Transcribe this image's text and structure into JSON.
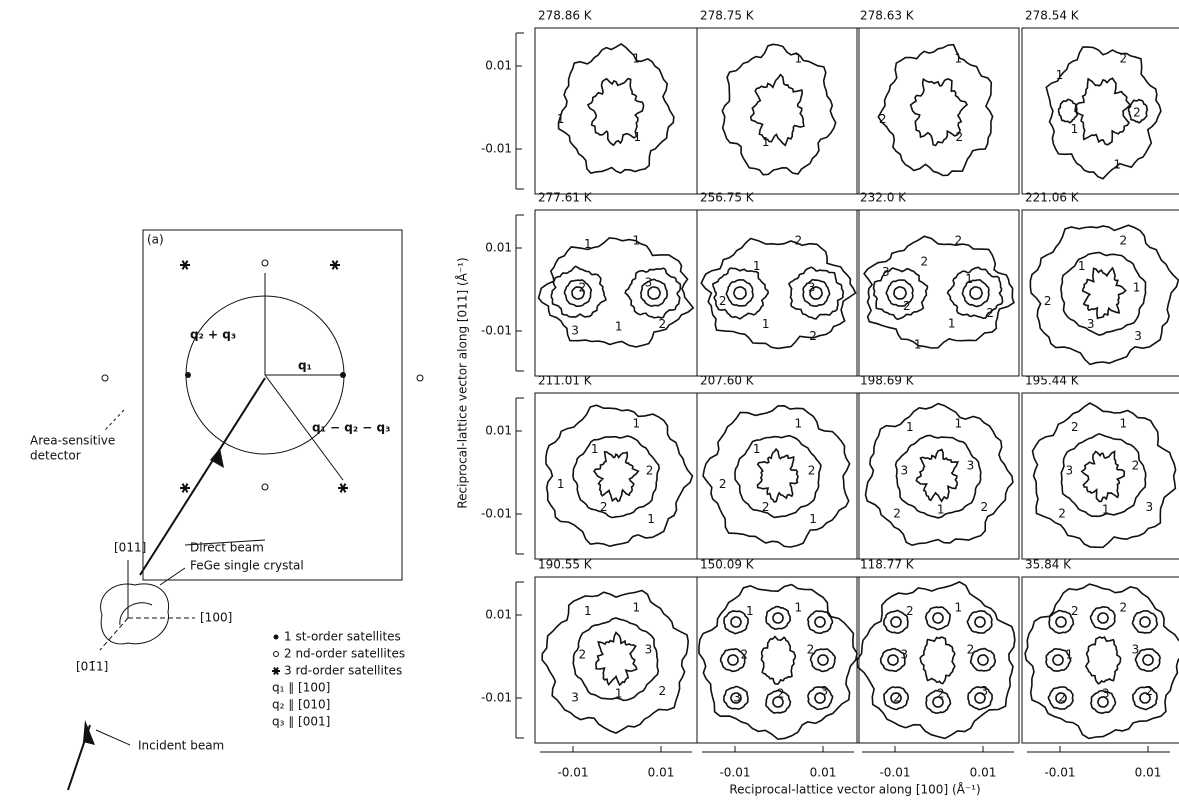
{
  "diagram": {
    "label": "(a)",
    "q23": "q₂ + q₃",
    "q1": "q₁",
    "q123": "q₁ − q₂ − q₃",
    "detector": [
      "Area-sensitive",
      "detector"
    ],
    "direct_beam": "Direct beam",
    "crystal": "FeGe single crystal",
    "incident_beam": "Incident beam",
    "axis_up": "[011]",
    "axis_right": "[100]",
    "axis_down": "[01̄1]"
  },
  "legend": [
    "1 st-order satellites",
    "2 nd-order satellites",
    "3 rd-order satellites",
    "q₁ ∥ [100]",
    "q₂ ∥ [010]",
    "q₃ ∥ [001]"
  ],
  "panels": [
    {
      "temperature": "278.86 K",
      "contour_labels": [
        "1",
        "1",
        "1"
      ]
    },
    {
      "temperature": "278.75 K",
      "contour_labels": [
        "1",
        "1"
      ]
    },
    {
      "temperature": "278.63 K",
      "contour_labels": [
        "1",
        "2",
        "2"
      ]
    },
    {
      "temperature": "278.54 K",
      "contour_labels": [
        "2",
        "2",
        "1",
        "1",
        "1"
      ]
    },
    {
      "temperature": "277.61 K",
      "contour_labels": [
        "1",
        "3",
        "2",
        "1",
        "3",
        "2",
        "1"
      ]
    },
    {
      "temperature": "256.75 K",
      "contour_labels": [
        "2",
        "3",
        "2",
        "1",
        "2",
        "1"
      ]
    },
    {
      "temperature": "232.0  K",
      "contour_labels": [
        "2",
        "1",
        "2",
        "1",
        "1",
        "2",
        "3",
        "2"
      ]
    },
    {
      "temperature": "221.06 K",
      "contour_labels": [
        "2",
        "1",
        "3",
        "3",
        "2",
        "1"
      ]
    },
    {
      "temperature": "211.01 K",
      "contour_labels": [
        "1",
        "2",
        "1",
        "2",
        "1",
        "1"
      ]
    },
    {
      "temperature": "207.60 K",
      "contour_labels": [
        "1",
        "2",
        "1",
        "2",
        "2",
        "1"
      ]
    },
    {
      "temperature": "198.69 K",
      "contour_labels": [
        "1",
        "3",
        "2",
        "1",
        "2",
        "3",
        "1"
      ]
    },
    {
      "temperature": "195.44 K",
      "contour_labels": [
        "1",
        "2",
        "3",
        "1",
        "2",
        "3",
        "2"
      ]
    },
    {
      "temperature": "190.55 K",
      "contour_labels": [
        "1",
        "3",
        "2",
        "1",
        "3",
        "2",
        "1"
      ]
    },
    {
      "temperature": "150.09 K",
      "contour_labels": [
        "1",
        "2",
        "3",
        "2",
        "3",
        "2",
        "1"
      ]
    },
    {
      "temperature": "118.77 K",
      "contour_labels": [
        "1",
        "2",
        "3",
        "2",
        "2",
        "3",
        "2"
      ]
    },
    {
      "temperature": "35.84 K",
      "contour_labels": [
        "2",
        "3",
        "2",
        "3",
        "2",
        "1",
        "2"
      ]
    }
  ],
  "y_ticks": [
    "0.01",
    "-0.01"
  ],
  "x_ticks": [
    "-0.01",
    "0.01"
  ],
  "y_title": "Reciprocal-lattice vector along [011] (Å⁻¹)",
  "x_title": "Reciprocal-lattice vector along [100] (Å⁻¹)"
}
